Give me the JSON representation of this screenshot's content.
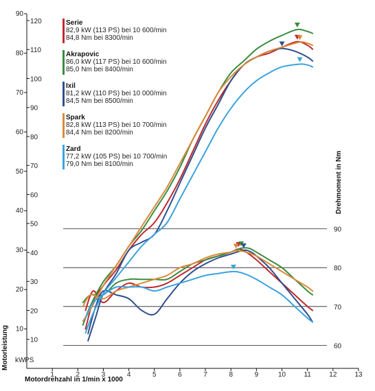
{
  "chart_data": {
    "type": "line",
    "xlabel": "Motordrehzahl in 1/min x 1000",
    "ylabel_left": "Motorleistung",
    "ylabel_right": "Drehmoment in Nm",
    "unit_kw": "kW",
    "unit_ps": "PS",
    "xlim": [
      0,
      13
    ],
    "x_ticks": [
      "1",
      "2",
      "3",
      "4",
      "5",
      "6",
      "7",
      "8",
      "9",
      "10",
      "11",
      "12",
      "13"
    ],
    "kw_ylim": [
      0,
      90
    ],
    "kw_ticks": [
      "10",
      "20",
      "30",
      "40",
      "50",
      "60",
      "70",
      "80",
      "90"
    ],
    "ps_ticks": [
      "10",
      "20",
      "30",
      "40",
      "50",
      "60",
      "70",
      "80",
      "90",
      "100",
      "110",
      "120"
    ],
    "nm_ylim": [
      50,
      120
    ],
    "nm_ticks": [
      "60",
      "70",
      "80",
      "90"
    ],
    "grid": "torque-area horizontal lines",
    "legend_placement": "top-left",
    "series": [
      {
        "name": "Serie",
        "color": "#c0282d",
        "legend_lines": [
          "82,9 kW (113 PS) bei 10 600/min",
          "84,8 Nm bei 8300/min"
        ],
        "power_kw": [
          [
            2.3,
            10
          ],
          [
            2.6,
            17
          ],
          [
            3.0,
            21
          ],
          [
            3.5,
            25
          ],
          [
            4.0,
            30
          ],
          [
            4.5,
            34
          ],
          [
            5.0,
            37
          ],
          [
            5.5,
            42
          ],
          [
            6.0,
            48
          ],
          [
            6.5,
            55
          ],
          [
            7.0,
            62
          ],
          [
            7.5,
            68
          ],
          [
            8.0,
            73
          ],
          [
            8.5,
            77
          ],
          [
            9.0,
            79
          ],
          [
            9.5,
            80
          ],
          [
            10.0,
            81.5
          ],
          [
            10.6,
            82.9
          ],
          [
            11.0,
            82
          ],
          [
            11.2,
            81
          ]
        ],
        "torque_nm": [
          [
            2.3,
            69
          ],
          [
            2.6,
            74
          ],
          [
            3.0,
            71
          ],
          [
            3.5,
            74
          ],
          [
            4.0,
            76
          ],
          [
            4.5,
            75
          ],
          [
            5.0,
            75
          ],
          [
            5.5,
            76
          ],
          [
            6.0,
            78
          ],
          [
            6.5,
            80
          ],
          [
            7.0,
            82
          ],
          [
            7.5,
            83
          ],
          [
            8.0,
            84
          ],
          [
            8.3,
            84.8
          ],
          [
            8.6,
            84
          ],
          [
            9.0,
            82
          ],
          [
            9.5,
            79
          ],
          [
            10.0,
            76
          ],
          [
            10.5,
            73
          ],
          [
            11.0,
            70
          ],
          [
            11.2,
            69
          ]
        ],
        "power_peak": [
          10.6,
          82.9
        ],
        "torque_peak": [
          8.3,
          84.8
        ]
      },
      {
        "name": "Akrapovic",
        "color": "#3a8c3f",
        "legend_lines": [
          "86,0 kW (117 PS) bei 10 600/min",
          "85,0 Nm bei 8400/min"
        ],
        "power_kw": [
          [
            2.2,
            11
          ],
          [
            2.5,
            16
          ],
          [
            3.0,
            22
          ],
          [
            3.5,
            26
          ],
          [
            4.0,
            31
          ],
          [
            4.5,
            35
          ],
          [
            5.0,
            40
          ],
          [
            5.5,
            45
          ],
          [
            6.0,
            51
          ],
          [
            6.5,
            58
          ],
          [
            7.0,
            64
          ],
          [
            7.5,
            70
          ],
          [
            8.0,
            75
          ],
          [
            8.5,
            78
          ],
          [
            9.0,
            81
          ],
          [
            9.5,
            83
          ],
          [
            10.0,
            84.5
          ],
          [
            10.6,
            86.0
          ],
          [
            11.0,
            85.5
          ],
          [
            11.2,
            85
          ]
        ],
        "torque_nm": [
          [
            2.2,
            71
          ],
          [
            2.5,
            73
          ],
          [
            3.0,
            73
          ],
          [
            3.5,
            76
          ],
          [
            4.0,
            77
          ],
          [
            4.5,
            77
          ],
          [
            5.0,
            77
          ],
          [
            5.5,
            77
          ],
          [
            6.0,
            79
          ],
          [
            6.5,
            81
          ],
          [
            7.0,
            82
          ],
          [
            7.5,
            83
          ],
          [
            8.0,
            84
          ],
          [
            8.4,
            85.0
          ],
          [
            8.7,
            85
          ],
          [
            9.0,
            84
          ],
          [
            9.5,
            82
          ],
          [
            10.0,
            80
          ],
          [
            10.5,
            77
          ],
          [
            11.0,
            74
          ],
          [
            11.2,
            73
          ]
        ],
        "power_peak": [
          10.6,
          86.0
        ],
        "torque_peak": [
          8.4,
          85.0
        ]
      },
      {
        "name": "Ixil",
        "color": "#2e4f8c",
        "legend_lines": [
          "81,2 kW (110 PS) bei 10 000/min",
          "84,5 Nm bei 8500/min"
        ],
        "power_kw": [
          [
            2.4,
            7
          ],
          [
            2.7,
            13
          ],
          [
            3.0,
            19
          ],
          [
            3.5,
            24
          ],
          [
            4.0,
            30
          ],
          [
            4.5,
            32
          ],
          [
            5.0,
            34
          ],
          [
            5.5,
            40
          ],
          [
            6.0,
            47
          ],
          [
            6.5,
            54
          ],
          [
            7.0,
            61
          ],
          [
            7.5,
            67
          ],
          [
            8.0,
            73
          ],
          [
            8.5,
            77
          ],
          [
            9.0,
            79
          ],
          [
            9.5,
            80.5
          ],
          [
            10.0,
            81.2
          ],
          [
            10.5,
            80.5
          ],
          [
            11.0,
            79
          ],
          [
            11.2,
            78
          ]
        ],
        "torque_nm": [
          [
            2.4,
            63
          ],
          [
            2.7,
            70
          ],
          [
            3.0,
            74
          ],
          [
            3.5,
            73
          ],
          [
            4.0,
            72
          ],
          [
            4.5,
            69
          ],
          [
            5.0,
            68
          ],
          [
            5.5,
            72
          ],
          [
            6.0,
            76
          ],
          [
            6.5,
            79
          ],
          [
            7.0,
            81
          ],
          [
            7.5,
            82.5
          ],
          [
            8.0,
            83.5
          ],
          [
            8.5,
            84.5
          ],
          [
            8.8,
            84
          ],
          [
            9.0,
            83
          ],
          [
            9.5,
            80
          ],
          [
            10.0,
            76
          ],
          [
            10.5,
            72
          ],
          [
            11.0,
            68
          ],
          [
            11.2,
            66
          ]
        ],
        "power_peak": [
          10.0,
          81.2
        ],
        "torque_peak": [
          8.5,
          84.5
        ]
      },
      {
        "name": "Spark",
        "color": "#d98a3c",
        "legend_lines": [
          "82,8 kW (113 PS) bei 10 700/min",
          "84,4 Nm bei 8200/min"
        ],
        "power_kw": [
          [
            2.2,
            12
          ],
          [
            2.5,
            15
          ],
          [
            3.0,
            21
          ],
          [
            3.5,
            26
          ],
          [
            4.0,
            31
          ],
          [
            4.5,
            36
          ],
          [
            5.0,
            41
          ],
          [
            5.5,
            46
          ],
          [
            6.0,
            52
          ],
          [
            6.5,
            58
          ],
          [
            7.0,
            64
          ],
          [
            7.5,
            70
          ],
          [
            8.0,
            74
          ],
          [
            8.5,
            77
          ],
          [
            9.0,
            79
          ],
          [
            9.5,
            80.5
          ],
          [
            10.0,
            81.5
          ],
          [
            10.7,
            82.8
          ],
          [
            11.0,
            82.5
          ],
          [
            11.2,
            82
          ]
        ],
        "torque_nm": [
          [
            2.2,
            70
          ],
          [
            2.5,
            73
          ],
          [
            3.0,
            72
          ],
          [
            3.5,
            74
          ],
          [
            4.0,
            75
          ],
          [
            4.5,
            76
          ],
          [
            5.0,
            77
          ],
          [
            5.5,
            78
          ],
          [
            6.0,
            80
          ],
          [
            6.5,
            81
          ],
          [
            7.0,
            82.5
          ],
          [
            7.5,
            83.5
          ],
          [
            8.0,
            84
          ],
          [
            8.2,
            84.4
          ],
          [
            8.6,
            84
          ],
          [
            9.0,
            83
          ],
          [
            9.5,
            81
          ],
          [
            10.0,
            79
          ],
          [
            10.5,
            77
          ],
          [
            11.0,
            75
          ],
          [
            11.2,
            74
          ]
        ],
        "power_peak": [
          10.7,
          82.8
        ],
        "torque_peak": [
          8.2,
          84.4
        ]
      },
      {
        "name": "Zard",
        "color": "#3aa3dc",
        "legend_lines": [
          "77,2 kW (105 PS) bei 10 700/min",
          "79,0 Nm bei 8100/min"
        ],
        "power_kw": [
          [
            2.3,
            9
          ],
          [
            2.6,
            14
          ],
          [
            3.0,
            19
          ],
          [
            3.5,
            23
          ],
          [
            4.0,
            27
          ],
          [
            4.5,
            31
          ],
          [
            5.0,
            34
          ],
          [
            5.5,
            37
          ],
          [
            6.0,
            43
          ],
          [
            6.5,
            49
          ],
          [
            7.0,
            55
          ],
          [
            7.5,
            61
          ],
          [
            8.0,
            66
          ],
          [
            8.5,
            70
          ],
          [
            9.0,
            73
          ],
          [
            9.5,
            75
          ],
          [
            10.0,
            76.5
          ],
          [
            10.7,
            77.2
          ],
          [
            11.0,
            77
          ],
          [
            11.2,
            76.5
          ]
        ],
        "torque_nm": [
          [
            2.3,
            67
          ],
          [
            2.6,
            71
          ],
          [
            3.0,
            73
          ],
          [
            3.5,
            75
          ],
          [
            4.0,
            75
          ],
          [
            4.5,
            75
          ],
          [
            5.0,
            74
          ],
          [
            5.5,
            75
          ],
          [
            6.0,
            76
          ],
          [
            6.5,
            77
          ],
          [
            7.0,
            78
          ],
          [
            7.5,
            78.5
          ],
          [
            8.1,
            79.0
          ],
          [
            8.5,
            78.5
          ],
          [
            9.0,
            77
          ],
          [
            9.5,
            75
          ],
          [
            10.0,
            73
          ],
          [
            10.5,
            70
          ],
          [
            11.0,
            67
          ],
          [
            11.2,
            66
          ]
        ],
        "power_peak": [
          10.7,
          77.2
        ],
        "torque_peak": [
          8.1,
          79.0
        ]
      }
    ]
  }
}
